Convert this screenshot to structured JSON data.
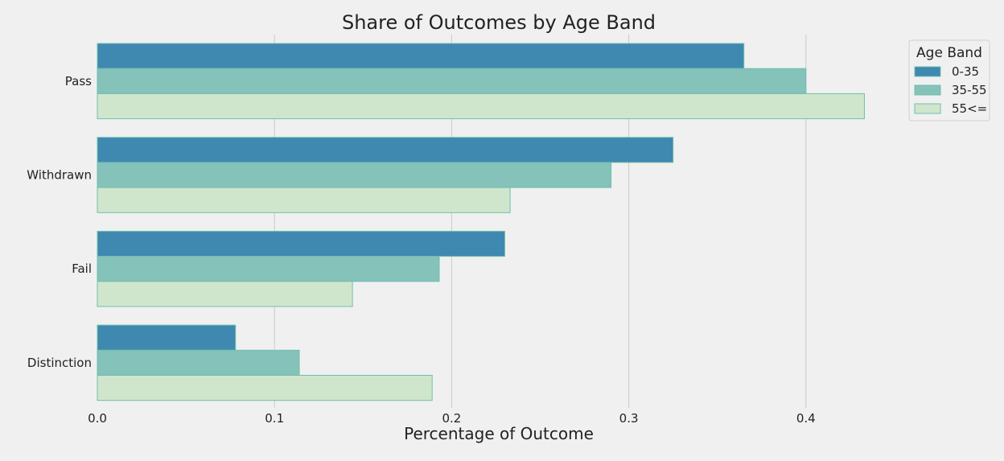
{
  "chart_data": {
    "type": "bar",
    "orientation": "horizontal",
    "title": "Share of Outcomes by Age Band",
    "xlabel": "Percentage of Outcome",
    "ylabel": "",
    "categories": [
      "Pass",
      "Withdrawn",
      "Fail",
      "Distinction"
    ],
    "series": [
      {
        "name": "0-35",
        "color": "#3f88b0",
        "values": [
          0.365,
          0.325,
          0.23,
          0.078
        ]
      },
      {
        "name": "35-55",
        "color": "#85c2ba",
        "values": [
          0.4,
          0.29,
          0.193,
          0.114
        ]
      },
      {
        "name": "55<=",
        "color": "#d0e6cc",
        "values": [
          0.433,
          0.233,
          0.144,
          0.189
        ]
      }
    ],
    "xlim": [
      0,
      0.45
    ],
    "xticks": [
      0.0,
      0.1,
      0.2,
      0.3,
      0.4
    ],
    "xtick_labels": [
      "0.0",
      "0.1",
      "0.2",
      "0.3",
      "0.4"
    ],
    "grid": "vertical",
    "legend": {
      "title": "Age Band",
      "placement": "top-right outside"
    }
  }
}
